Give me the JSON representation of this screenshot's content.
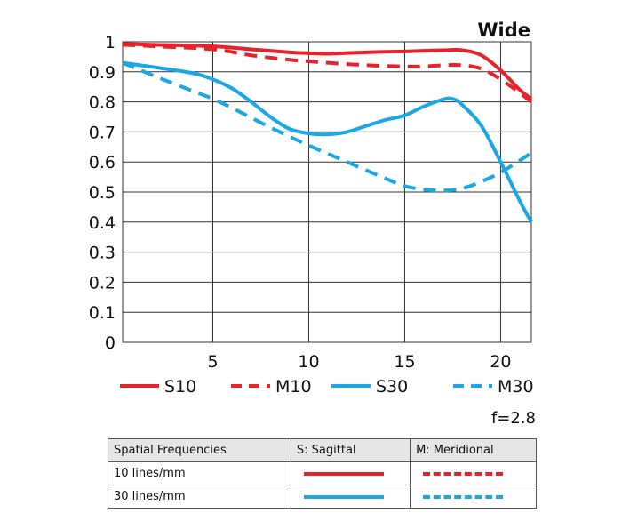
{
  "chart_data": {
    "type": "line",
    "title": "Wide",
    "annotation": "f=2.8",
    "xlim": [
      0.3,
      21.6
    ],
    "ylim": [
      0,
      1
    ],
    "x_ticks": [
      5,
      10,
      15,
      20
    ],
    "y_ticks": [
      0,
      0.1,
      0.2,
      0.3,
      0.4,
      0.5,
      0.6,
      0.7,
      0.8,
      0.9,
      1
    ],
    "y_tick_labels": [
      "0",
      "0.1",
      "0.2",
      "0.3",
      "0.4",
      "0.5",
      "0.6",
      "0.7",
      "0.8",
      "0.9",
      "1"
    ],
    "grid": true,
    "legend_position": "bottom",
    "series": [
      {
        "name": "S10",
        "color": "#e8222a",
        "dash": false,
        "x": [
          0.3,
          2,
          5,
          7,
          9,
          10,
          11,
          13,
          15,
          16,
          17,
          18,
          19,
          20,
          21,
          21.6
        ],
        "y": [
          0.993,
          0.99,
          0.985,
          0.975,
          0.965,
          0.962,
          0.96,
          0.965,
          0.968,
          0.97,
          0.972,
          0.972,
          0.955,
          0.905,
          0.84,
          0.81
        ]
      },
      {
        "name": "M10",
        "color": "#e8222a",
        "dash": true,
        "x": [
          0.3,
          2,
          5,
          7,
          9,
          10,
          11,
          13,
          15,
          16,
          17,
          18,
          19,
          20,
          21,
          21.6
        ],
        "y": [
          0.99,
          0.985,
          0.975,
          0.955,
          0.94,
          0.935,
          0.93,
          0.922,
          0.918,
          0.918,
          0.922,
          0.922,
          0.91,
          0.875,
          0.83,
          0.8
        ]
      },
      {
        "name": "S30",
        "color": "#1aa7e4",
        "dash": false,
        "x": [
          0.3,
          2,
          4,
          5,
          6,
          7,
          8,
          9,
          10,
          11,
          12,
          13,
          14,
          15,
          16,
          17,
          17.5,
          18,
          19,
          20,
          21,
          21.6
        ],
        "y": [
          0.93,
          0.915,
          0.895,
          0.875,
          0.845,
          0.8,
          0.75,
          0.71,
          0.695,
          0.692,
          0.7,
          0.72,
          0.74,
          0.755,
          0.785,
          0.808,
          0.81,
          0.79,
          0.72,
          0.6,
          0.47,
          0.4
        ]
      },
      {
        "name": "M30",
        "color": "#1aa7e4",
        "dash": true,
        "x": [
          0.3,
          2,
          4,
          5,
          6,
          8,
          10,
          12,
          14,
          15,
          16,
          17,
          18,
          19,
          20,
          21,
          21.6
        ],
        "y": [
          0.93,
          0.885,
          0.835,
          0.81,
          0.78,
          0.715,
          0.655,
          0.6,
          0.545,
          0.52,
          0.508,
          0.505,
          0.512,
          0.535,
          0.565,
          0.605,
          0.63
        ]
      }
    ]
  },
  "legend_table": {
    "headers": [
      "Spatial Frequencies",
      "S: Sagittal",
      "M: Meridional"
    ],
    "rows": [
      {
        "label": "10 lines/mm",
        "sagittal_color": "#e8222a",
        "meridional_color": "#e8222a"
      },
      {
        "label": "30 lines/mm",
        "sagittal_color": "#1aa7e4",
        "meridional_color": "#1aa7e4"
      }
    ]
  }
}
